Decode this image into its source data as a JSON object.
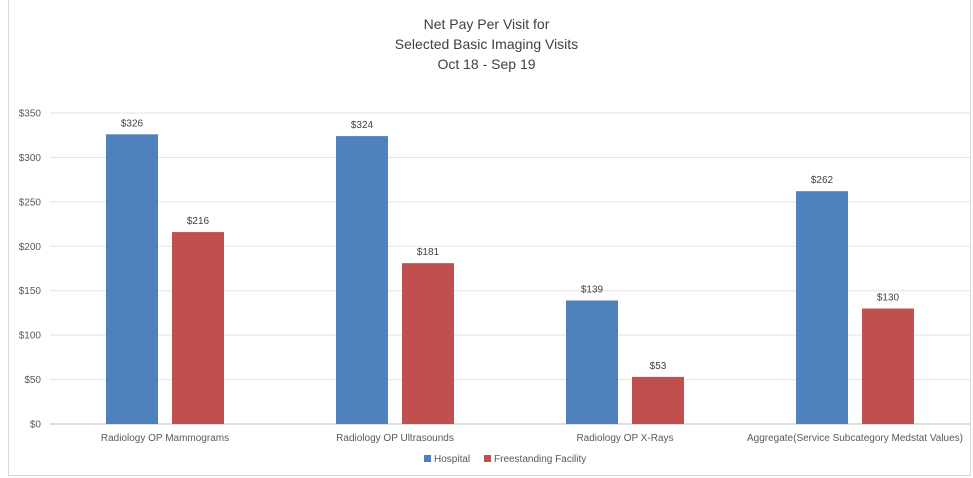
{
  "chart_data": {
    "type": "bar",
    "title": [
      "Net Pay Per Visit for",
      "Selected Basic Imaging Visits",
      "Oct 18 - Sep 19"
    ],
    "categories": [
      "Radiology OP Mammograms",
      "Radiology OP Ultrasounds",
      "Radiology OP X-Rays",
      "Aggregate(Service Subcategory Medstat Values)"
    ],
    "series": [
      {
        "name": "Hospital",
        "color": "#4f81bd",
        "values": [
          326,
          324,
          139,
          262
        ],
        "labels": [
          "$326",
          "$324",
          "$139",
          "$262"
        ]
      },
      {
        "name": "Freestanding Facility",
        "color": "#c0504d",
        "values": [
          216,
          181,
          53,
          130
        ],
        "labels": [
          "$216",
          "$181",
          "$53",
          "$130"
        ]
      }
    ],
    "yticks": [
      "$0",
      "$50",
      "$100",
      "$150",
      "$200",
      "$250",
      "$300",
      "$350"
    ],
    "ylim": [
      0,
      350
    ],
    "grid": true,
    "legend_position": "bottom"
  }
}
